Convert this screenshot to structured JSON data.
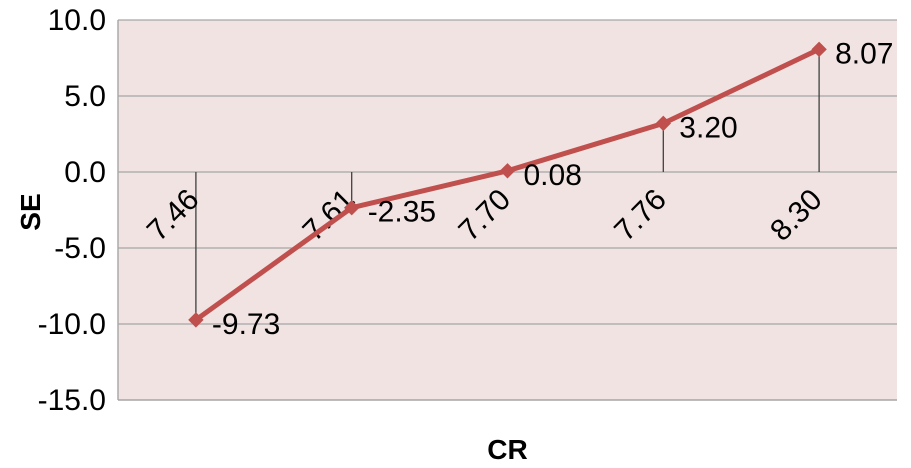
{
  "chart_data": {
    "type": "line",
    "title": "",
    "xlabel": "CR",
    "ylabel": "SE",
    "categories": [
      "7.46",
      "7.61",
      "7.70",
      "7.76",
      "8.30"
    ],
    "values": [
      -9.73,
      -2.35,
      0.08,
      3.2,
      8.07
    ],
    "value_labels": [
      "-9.73",
      "-2.35",
      "0.08",
      "3.20",
      "8.07"
    ],
    "ylim": [
      -15,
      10
    ],
    "yticks": [
      "10.0",
      "5.0",
      "0.0",
      "-5.0",
      "-10.0",
      "-15.0"
    ],
    "grid": "horizontal",
    "drop_lines": true,
    "marker": "diamond",
    "colors": {
      "line": "#C0504D",
      "plot_background": "#F2E3E3",
      "gridline": "#A6A6A6",
      "drop_line": "#404040"
    }
  }
}
